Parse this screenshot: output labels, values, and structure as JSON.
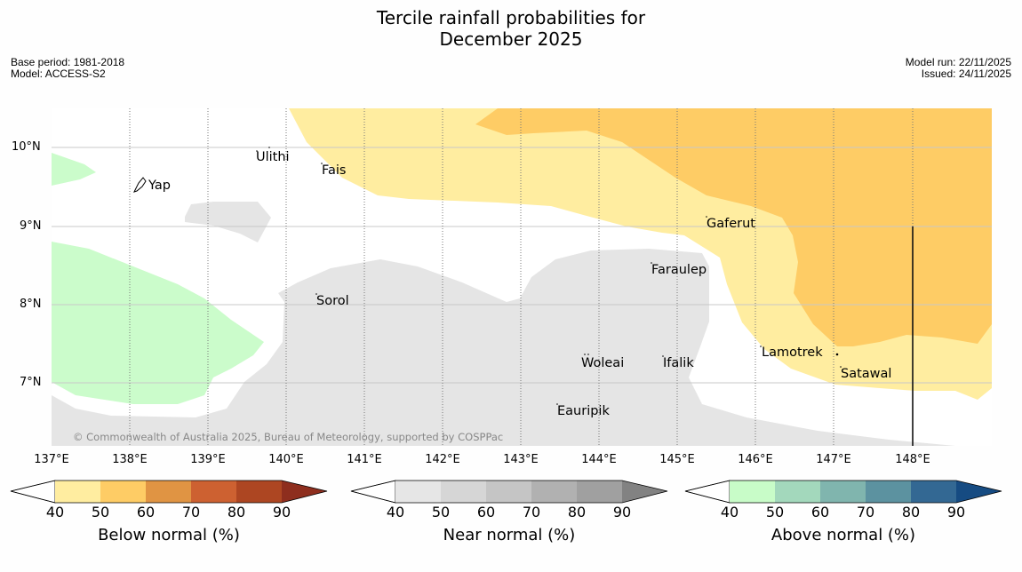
{
  "header": {
    "title_line1": "Tercile rainfall probabilities for",
    "title_line2": "December 2025",
    "base_period": "Base period: 1981-2018",
    "model": "Model: ACCESS-S2",
    "model_run": "Model run: 22/11/2025",
    "issued": "Issued: 24/11/2025"
  },
  "map": {
    "lat_ticks": [
      "10°N",
      "9°N",
      "8°N",
      "7°N"
    ],
    "lon_ticks": [
      "137°E",
      "138°E",
      "139°E",
      "140°E",
      "141°E",
      "142°E",
      "143°E",
      "144°E",
      "145°E",
      "146°E",
      "147°E",
      "148°E"
    ],
    "places": [
      "Yap",
      "Ulithi",
      "Fais",
      "Gaferut",
      "Faraulep",
      "Sorol",
      "Woleai",
      "Ifalik",
      "Lamotrek",
      "Satawal",
      "Eauripik"
    ],
    "copyright": "© Commonwealth of Australia 2025, Bureau of Meteorology, supported by COSPPac",
    "colors": {
      "near_normal": "#e5e5e5",
      "below_40": "#ffeda0",
      "below_50": "#fecc65",
      "above_40": "#cbfccb"
    }
  },
  "legends": [
    {
      "label": "Below normal (%)",
      "ticks": [
        "40",
        "50",
        "60",
        "70",
        "80",
        "90"
      ],
      "colors": [
        "#ffeda0",
        "#fecc65",
        "#e09443",
        "#cd6131",
        "#ad4622",
        "#8e2e1e"
      ]
    },
    {
      "label": "Near normal (%)",
      "ticks": [
        "40",
        "50",
        "60",
        "70",
        "80",
        "90"
      ],
      "colors": [
        "#e6e6e6",
        "#d6d6d6",
        "#c5c5c5",
        "#b1b1b1",
        "#a0a0a0",
        "#828282"
      ]
    },
    {
      "label": "Above normal (%)",
      "ticks": [
        "40",
        "50",
        "60",
        "70",
        "80",
        "90"
      ],
      "colors": [
        "#c8fcc8",
        "#a3d8bc",
        "#80b5ae",
        "#5c92a0",
        "#336893",
        "#164b82"
      ]
    }
  ]
}
